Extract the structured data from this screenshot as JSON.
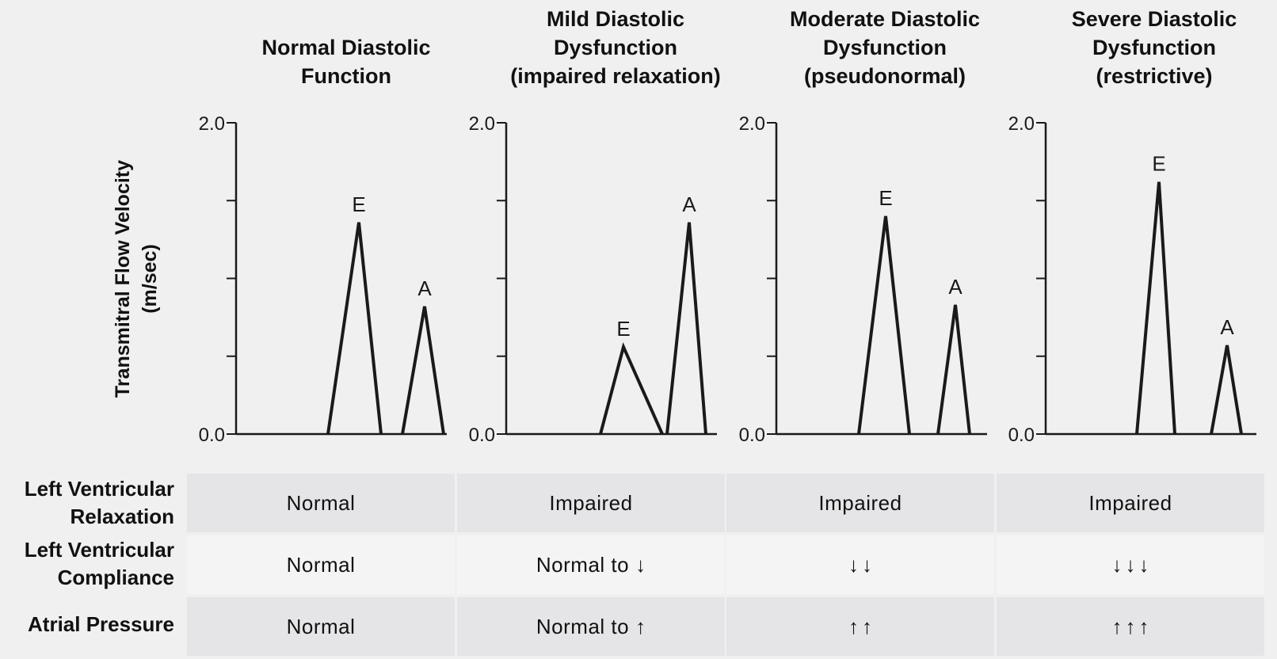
{
  "panels": [
    {
      "title": "Normal Diastolic\nFunction",
      "ymax_label": "2.0",
      "ymin_label": "0.0",
      "peaks": [
        {
          "label": "E",
          "value": 1.36
        },
        {
          "label": "A",
          "value": 0.82
        }
      ]
    },
    {
      "title": "Mild Diastolic\nDysfunction\n(impaired relaxation)",
      "ymax_label": "2.0",
      "ymin_label": "0.0",
      "peaks": [
        {
          "label": "E",
          "value": 0.56
        },
        {
          "label": "A",
          "value": 1.36
        }
      ]
    },
    {
      "title": "Moderate Diastolic\nDysfunction\n(pseudonormal)",
      "ymax_label": "2.0",
      "ymin_label": "0.0",
      "peaks": [
        {
          "label": "E",
          "value": 1.4
        },
        {
          "label": "A",
          "value": 0.83
        }
      ]
    },
    {
      "title": "Severe Diastolic\nDysfunction\n(restrictive)",
      "ymax_label": "2.0",
      "ymin_label": "0.0",
      "peaks": [
        {
          "label": "E",
          "value": 1.62
        },
        {
          "label": "A",
          "value": 0.57
        }
      ]
    }
  ],
  "y_axis_label": "Transmitral Flow Velocity\n(m/sec)",
  "table": {
    "rows": [
      {
        "label": "Left Ventricular\nRelaxation",
        "cells": [
          {
            "text": "Normal",
            "arrows": ""
          },
          {
            "text": "Impaired",
            "arrows": ""
          },
          {
            "text": "Impaired",
            "arrows": ""
          },
          {
            "text": "Impaired",
            "arrows": ""
          }
        ]
      },
      {
        "label": "Left Ventricular\nCompliance",
        "cells": [
          {
            "text": "Normal",
            "arrows": ""
          },
          {
            "text": "Normal to",
            "arrows": "↓"
          },
          {
            "text": "",
            "arrows": "↓↓"
          },
          {
            "text": "",
            "arrows": "↓↓↓"
          }
        ]
      },
      {
        "label": "Atrial Pressure",
        "cells": [
          {
            "text": "Normal",
            "arrows": ""
          },
          {
            "text": "Normal to",
            "arrows": "↑"
          },
          {
            "text": "",
            "arrows": "↑↑"
          },
          {
            "text": "",
            "arrows": "↑↑↑"
          }
        ]
      }
    ]
  },
  "colors": {
    "line": "#1a1a1a",
    "shaded": "#e5e5e7",
    "plain": "#f4f4f5"
  }
}
